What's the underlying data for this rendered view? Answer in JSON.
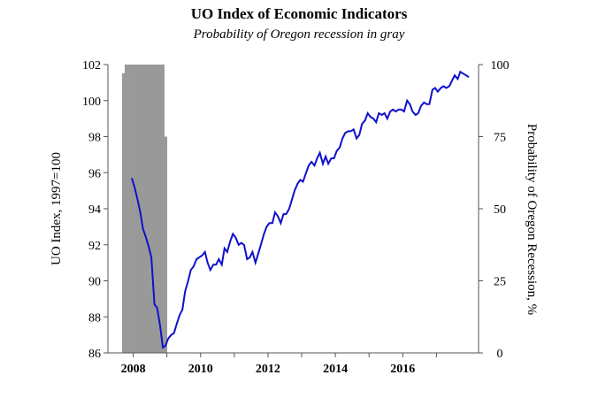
{
  "chart_data": {
    "type": "line",
    "title": "UO Index of Economic Indicators",
    "subtitle": "Probability of Oregon recession in gray",
    "ylabel": "UO Index, 1997=100",
    "y2label": "Probability of Oregon Recession, %",
    "xlabel": "",
    "xlim": [
      2007.25,
      2018.25
    ],
    "ylim": [
      86,
      102
    ],
    "y2lim": [
      0,
      100
    ],
    "x_ticks": [
      2008,
      2010,
      2012,
      2014,
      2016
    ],
    "x_tick_labels": [
      "2008",
      "2010",
      "2012",
      "2014",
      "2016"
    ],
    "y_ticks": [
      86,
      88,
      90,
      92,
      94,
      96,
      98,
      100,
      102
    ],
    "y_tick_labels": [
      "86",
      "88",
      "90",
      "92",
      "94",
      "96",
      "98",
      "100",
      "102"
    ],
    "y2_ticks": [
      0,
      25,
      50,
      75,
      100
    ],
    "y2_tick_labels": [
      "0",
      "25",
      "50",
      "75",
      "100"
    ],
    "grid": false,
    "colors": {
      "index_line": "#1010cc",
      "recession_bars": "#999999",
      "axis": "#555555"
    },
    "series": [
      {
        "kind": "recession_probability",
        "axis": "right",
        "x": [
          2007.71,
          2007.79,
          2007.88,
          2007.96,
          2008.04,
          2008.13,
          2008.21,
          2008.29,
          2008.38,
          2008.46,
          2008.54,
          2008.63,
          2008.71,
          2008.79,
          2008.88,
          2008.96
        ],
        "values": [
          97,
          100,
          100,
          100,
          100,
          100,
          100,
          100,
          100,
          100,
          100,
          100,
          100,
          100,
          100,
          75
        ]
      },
      {
        "kind": "index",
        "axis": "left",
        "x": [
          2007.96,
          2008.04,
          2008.13,
          2008.21,
          2008.29,
          2008.38,
          2008.46,
          2008.54,
          2008.63,
          2008.71,
          2008.79,
          2008.88,
          2008.96,
          2009.04,
          2009.13,
          2009.21,
          2009.29,
          2009.38,
          2009.46,
          2009.54,
          2009.63,
          2009.71,
          2009.79,
          2009.88,
          2009.96,
          2010.04,
          2010.13,
          2010.21,
          2010.29,
          2010.38,
          2010.46,
          2010.54,
          2010.63,
          2010.71,
          2010.79,
          2010.88,
          2010.96,
          2011.04,
          2011.13,
          2011.21,
          2011.29,
          2011.38,
          2011.46,
          2011.54,
          2011.63,
          2011.71,
          2011.79,
          2011.88,
          2011.96,
          2012.04,
          2012.13,
          2012.21,
          2012.29,
          2012.38,
          2012.46,
          2012.54,
          2012.63,
          2012.71,
          2012.79,
          2012.88,
          2012.96,
          2013.04,
          2013.13,
          2013.21,
          2013.29,
          2013.38,
          2013.46,
          2013.54,
          2013.63,
          2013.71,
          2013.79,
          2013.88,
          2013.96,
          2014.04,
          2014.13,
          2014.21,
          2014.29,
          2014.38,
          2014.46,
          2014.54,
          2014.63,
          2014.71,
          2014.79,
          2014.88,
          2014.96,
          2015.04,
          2015.13,
          2015.21,
          2015.29,
          2015.38,
          2015.46,
          2015.54,
          2015.63,
          2015.71,
          2015.79,
          2015.88,
          2015.96,
          2016.04,
          2016.13,
          2016.21,
          2016.29,
          2016.38,
          2016.46,
          2016.54,
          2016.63,
          2016.71,
          2016.79,
          2016.88,
          2016.96,
          2017.04,
          2017.13,
          2017.21,
          2017.29,
          2017.38,
          2017.46,
          2017.54,
          2017.63,
          2017.71,
          2017.79,
          2017.88,
          2017.96
        ],
        "values": [
          95.7,
          95.2,
          94.5,
          93.8,
          92.9,
          92.4,
          91.9,
          91.3,
          88.7,
          88.5,
          87.6,
          86.3,
          86.4,
          86.8,
          87.0,
          87.1,
          87.6,
          88.1,
          88.4,
          89.4,
          90.0,
          90.6,
          90.8,
          91.2,
          91.3,
          91.4,
          91.6,
          91.0,
          90.6,
          90.9,
          90.9,
          91.2,
          90.9,
          91.8,
          91.6,
          92.2,
          92.6,
          92.4,
          92.0,
          92.1,
          92.0,
          91.2,
          91.3,
          91.6,
          91.0,
          91.5,
          92.0,
          92.6,
          93.0,
          93.2,
          93.2,
          93.8,
          93.6,
          93.2,
          93.7,
          93.7,
          94.0,
          94.5,
          95.0,
          95.4,
          95.6,
          95.5,
          96.0,
          96.4,
          96.6,
          96.4,
          96.8,
          97.1,
          96.5,
          96.9,
          96.5,
          96.8,
          96.8,
          97.2,
          97.4,
          97.9,
          98.2,
          98.3,
          98.3,
          98.4,
          97.9,
          98.1,
          98.7,
          98.9,
          99.3,
          99.1,
          99.0,
          98.8,
          99.3,
          99.2,
          99.3,
          99.0,
          99.4,
          99.5,
          99.4,
          99.5,
          99.5,
          99.4,
          100.0,
          99.8,
          99.4,
          99.2,
          99.3,
          99.7,
          99.9,
          99.8,
          99.8,
          100.6,
          100.7,
          100.5,
          100.7,
          100.8,
          100.7,
          100.8,
          101.1,
          101.4,
          101.2,
          101.6,
          101.5,
          101.4,
          101.3
        ]
      }
    ]
  }
}
